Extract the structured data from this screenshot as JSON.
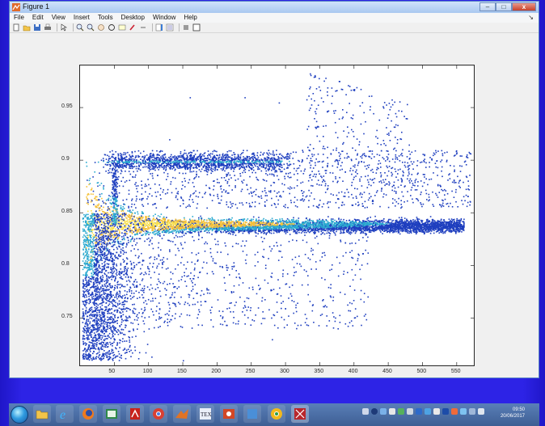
{
  "window": {
    "title": "Figure 1",
    "controls": [
      "–",
      "□",
      "x"
    ]
  },
  "menu": {
    "items": [
      "File",
      "Edit",
      "View",
      "Insert",
      "Tools",
      "Desktop",
      "Window",
      "Help"
    ]
  },
  "toolbar": {
    "icons": [
      "new-figure-icon",
      "open-file-icon",
      "save-icon",
      "print-icon",
      "select-arrow-icon",
      "zoom-in-icon",
      "zoom-out-icon",
      "pan-icon",
      "rotate-icon",
      "data-cursor-icon",
      "brush-icon",
      "link-icon",
      "colorbar-icon",
      "legend-icon",
      "hide-tools-icon",
      "show-tools-icon"
    ]
  },
  "chart_data": {
    "type": "heatmap",
    "title": "",
    "xlabel": "",
    "ylabel": "",
    "xlim": [
      0,
      575
    ],
    "ylim": [
      0.705,
      0.99
    ],
    "xticks": [
      50,
      100,
      150,
      200,
      250,
      300,
      350,
      400,
      450,
      500,
      550
    ],
    "yticks": [
      0.75,
      0.8,
      0.85,
      0.9,
      0.95
    ],
    "xtick_labels": [
      "50",
      "100",
      "150",
      "200",
      "250",
      "300",
      "350",
      "400",
      "450",
      "500",
      "550"
    ],
    "ytick_labels": [
      "0.75",
      "0.8",
      "0.85",
      "0.9",
      "0.95"
    ],
    "grid": false,
    "colormap": "parula",
    "regions": [
      {
        "name": "main band",
        "x_range": [
          10,
          560
        ],
        "y_center": 0.84,
        "peak_x": 50
      },
      {
        "name": "upper band",
        "x_range": [
          40,
          290
        ],
        "y_center": 0.9,
        "peak_x": 150
      },
      {
        "name": "sparse cloud",
        "x_range": [
          330,
          480
        ],
        "y_center": 0.95,
        "peak_x": 360
      },
      {
        "name": "low spread",
        "x_range": [
          5,
          80
        ],
        "y_center": 0.77,
        "peak_x": 20
      }
    ]
  },
  "taskbar": {
    "apps": [
      "file-explorer-icon",
      "internet-explorer-icon",
      "firefox-icon",
      "excel-icon",
      "acrobat-icon",
      "chrome-icon",
      "matlab-icon",
      "latex-icon",
      "powerpoint-icon",
      "office-icon",
      "chrome-icon-2",
      "visual-studio-icon"
    ],
    "time": "09:50",
    "date": "20/06/2017"
  },
  "colors": {
    "desktop": "#2d23e6",
    "low": "#1f3fbf",
    "mid": "#2aa9cf",
    "high": "#f4c13a",
    "top": "#f9e04b"
  }
}
